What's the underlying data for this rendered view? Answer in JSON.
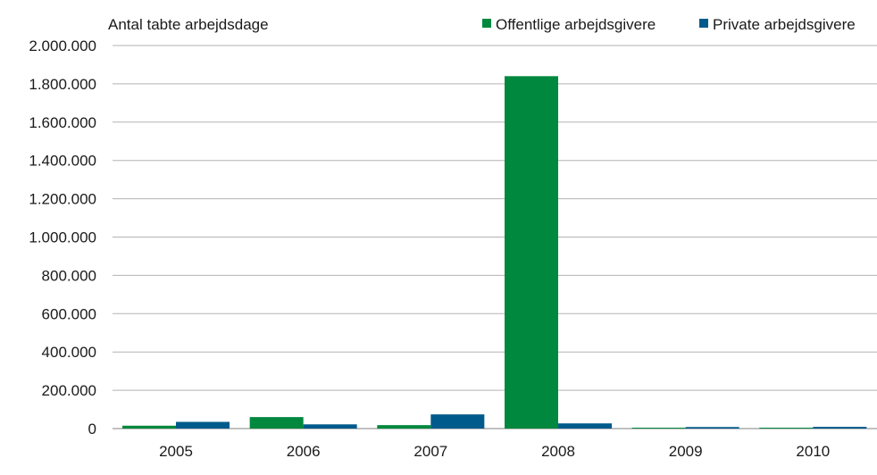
{
  "chart_data": {
    "type": "bar",
    "title": "",
    "xlabel": "",
    "ylabel": "Antal tabte arbejdsdage",
    "categories": [
      "2005",
      "2006",
      "2007",
      "2008",
      "2009",
      "2010"
    ],
    "series": [
      {
        "name": "Offentlige arbejdsgivere",
        "color": "#00883e",
        "values": [
          15000,
          60000,
          18000,
          1840000,
          4000,
          3000
        ]
      },
      {
        "name": "Private arbejdsgivere",
        "color": "#005a8c",
        "values": [
          35000,
          22000,
          74000,
          27000,
          8000,
          9000
        ]
      }
    ],
    "ylim": [
      0,
      2000000
    ],
    "yticks": [
      0,
      200000,
      400000,
      600000,
      800000,
      1000000,
      1200000,
      1400000,
      1600000,
      1800000,
      2000000
    ],
    "ytick_labels": [
      "0",
      "200.000",
      "400.000",
      "600.000",
      "800.000",
      "1.000.000",
      "1.200.000",
      "1.400.000",
      "1.600.000",
      "1.800.000",
      "2.000.000"
    ],
    "grid": true,
    "legend": "top-right",
    "grid_color": "#b3b3b3"
  }
}
